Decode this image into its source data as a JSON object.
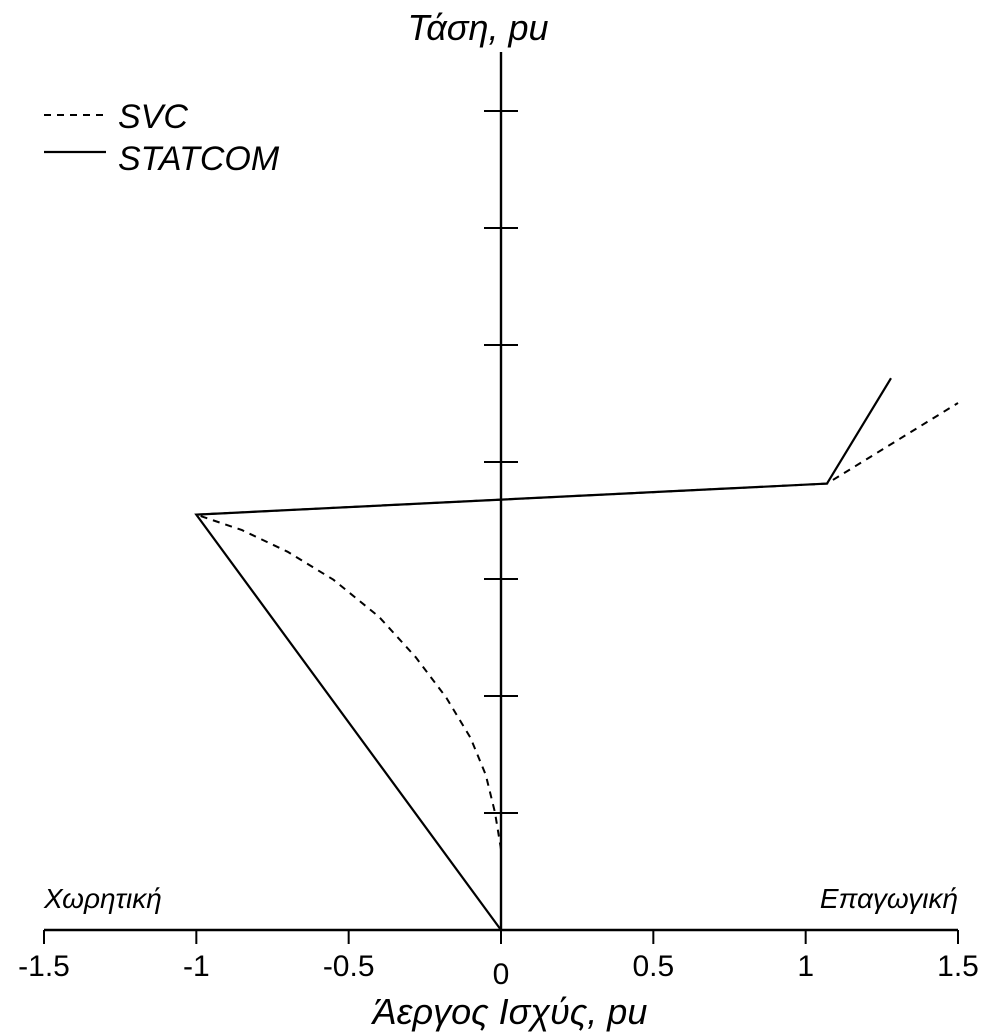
{
  "chart_data": {
    "type": "line",
    "title": "",
    "ylabel": "Τάση, pu",
    "xlabel": "Άεργος Ισχύς, pu",
    "xlim": [
      -1.5,
      1.5
    ],
    "x_ticks": [
      -1.5,
      -1,
      -0.5,
      0,
      0.5,
      1,
      1.5
    ],
    "x_tick_labels": [
      "-1.5",
      "-1",
      "-0.5",
      "0",
      "0.5",
      "1",
      "1.5"
    ],
    "y_tick_count": 7,
    "region_labels": {
      "left": "Χωρητική",
      "right": "Επαγωγική"
    },
    "legend_position": "top-left",
    "grid": false,
    "series": [
      {
        "name": "SVC",
        "style": "dashed",
        "x": [
          0.0,
          -0.01,
          -0.02,
          -0.05,
          -0.1,
          -0.18,
          -0.28,
          -0.4,
          -0.55,
          -0.7,
          -0.85,
          -1.0,
          1.07,
          1.5
        ],
        "y": [
          0.13,
          0.16,
          0.19,
          0.25,
          0.31,
          0.375,
          0.44,
          0.505,
          0.565,
          0.61,
          0.645,
          0.67,
          0.72,
          0.85
        ]
      },
      {
        "name": "STATCOM",
        "style": "solid",
        "x": [
          0.0,
          -1.0,
          1.07,
          1.28
        ],
        "y": [
          0.0,
          0.67,
          0.72,
          0.89
        ]
      }
    ]
  }
}
